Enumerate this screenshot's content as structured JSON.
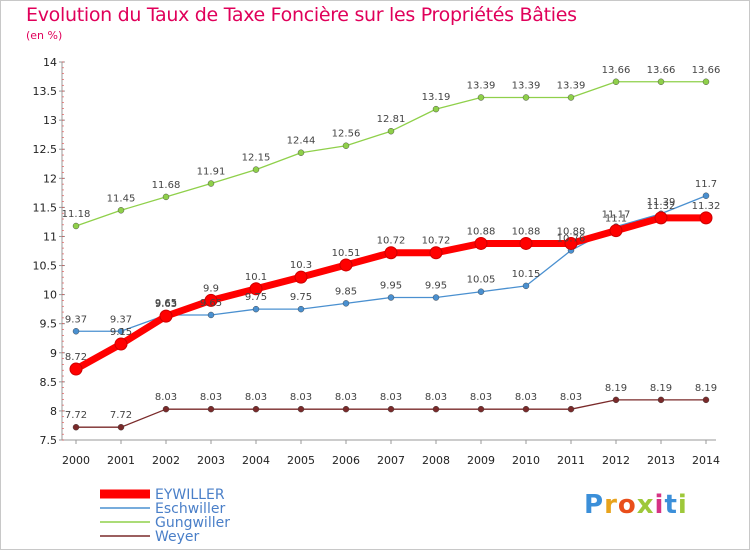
{
  "header": {
    "title": "Evolution du Taux de Taxe Foncière sur les Propriétés Bâties",
    "subtitle": "(en %)"
  },
  "logo": {
    "text": "Proxiti",
    "colors": [
      "#3b8fd9",
      "#e8a31c",
      "#e94e1b",
      "#9ec83a",
      "#d63384",
      "#3b8fd9",
      "#9ec83a"
    ]
  },
  "chart_data": {
    "type": "line",
    "categories": [
      "2000",
      "2001",
      "2002",
      "2003",
      "2004",
      "2005",
      "2006",
      "2007",
      "2008",
      "2009",
      "2010",
      "2011",
      "2012",
      "2013",
      "2014"
    ],
    "y_ticks": [
      "7.5",
      "8",
      "8.5",
      "9",
      "9.5",
      "10",
      "10.5",
      "11",
      "11.5",
      "12",
      "12.5",
      "13",
      "13.5",
      "14"
    ],
    "ylim": [
      7.5,
      14
    ],
    "grid": false,
    "legend_position": "bottom-left",
    "series": [
      {
        "name": "EYWILLER",
        "color": "#ff0000",
        "values": [
          8.72,
          9.15,
          9.63,
          9.9,
          10.1,
          10.3,
          10.51,
          10.72,
          10.72,
          10.88,
          10.88,
          10.88,
          11.1,
          11.32,
          11.32
        ],
        "labels": [
          "8.72",
          "9.15",
          "9.63",
          "9.9",
          "10.1",
          "10.3",
          "10.51",
          "10.72",
          "10.72",
          "10.88",
          "10.88",
          "10.88",
          "11.1",
          "11.32",
          "11.32"
        ]
      },
      {
        "name": "Eschwiller",
        "color": "#4a90d0",
        "values": [
          9.37,
          9.37,
          9.65,
          9.65,
          9.75,
          9.75,
          9.85,
          9.95,
          9.95,
          10.05,
          10.15,
          10.76,
          11.17,
          11.39,
          11.7
        ],
        "labels": [
          "9.37",
          "9.37",
          "9.65",
          "9.65",
          "9.75",
          "9.75",
          "9.85",
          "9.95",
          "9.95",
          "10.05",
          "10.15",
          "10.76",
          "11.17",
          "11.39",
          "11.7"
        ]
      },
      {
        "name": "Gungwiller",
        "color": "#8fd04a",
        "values": [
          11.18,
          11.45,
          11.68,
          11.91,
          12.15,
          12.44,
          12.56,
          12.81,
          13.19,
          13.39,
          13.39,
          13.39,
          13.66,
          13.66,
          13.66
        ],
        "labels": [
          "11.18",
          "11.45",
          "11.68",
          "11.91",
          "12.15",
          "12.44",
          "12.56",
          "12.81",
          "13.19",
          "13.39",
          "13.39",
          "13.39",
          "13.66",
          "13.66",
          "13.66"
        ]
      },
      {
        "name": "Weyer",
        "color": "#7a2a2a",
        "values": [
          7.72,
          7.72,
          8.03,
          8.03,
          8.03,
          8.03,
          8.03,
          8.03,
          8.03,
          8.03,
          8.03,
          8.03,
          8.19,
          8.19,
          8.19
        ],
        "labels": [
          "7.72",
          "7.72",
          "8.03",
          "8.03",
          "8.03",
          "8.03",
          "8.03",
          "8.03",
          "8.03",
          "8.03",
          "8.03",
          "8.03",
          "8.19",
          "8.19",
          "8.19"
        ]
      }
    ]
  }
}
